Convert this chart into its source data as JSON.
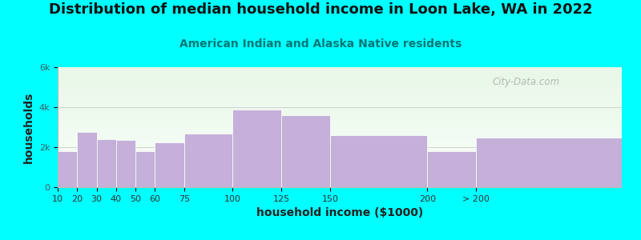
{
  "title": "Distribution of median household income in Loon Lake, WA in 2022",
  "subtitle": "American Indian and Alaska Native residents",
  "xlabel": "household income ($1000)",
  "ylabel": "households",
  "bg_color": "#00FFFF",
  "bar_color": "#C4B0D8",
  "bar_edgecolor": "#ffffff",
  "categories": [
    "10",
    "20",
    "30",
    "40",
    "50",
    "60",
    "75",
    "100",
    "125",
    "150",
    "200",
    "> 200"
  ],
  "values": [
    1800,
    2750,
    2400,
    2350,
    1800,
    2250,
    2700,
    3900,
    3600,
    2600,
    1800,
    2500
  ],
  "bar_lefts": [
    10,
    20,
    30,
    40,
    50,
    60,
    75,
    100,
    125,
    150,
    200,
    225
  ],
  "bar_widths": [
    10,
    10,
    10,
    10,
    10,
    15,
    25,
    25,
    25,
    50,
    25,
    75
  ],
  "xtick_pos": [
    10,
    20,
    30,
    40,
    50,
    60,
    75,
    100,
    125,
    150,
    200,
    225
  ],
  "xtick_labels": [
    "10",
    "20",
    "30",
    "40",
    "50",
    "60",
    "75",
    "100",
    "125",
    "150",
    "200",
    "> 200"
  ],
  "xlim": [
    10,
    300
  ],
  "ylim": [
    0,
    6000
  ],
  "yticks": [
    0,
    2000,
    4000,
    6000
  ],
  "ytick_labels": [
    "0",
    "2k",
    "4k",
    "6k"
  ],
  "watermark": "City-Data.com",
  "title_fontsize": 13,
  "subtitle_fontsize": 10,
  "axis_label_fontsize": 10,
  "tick_fontsize": 8,
  "gradient_top": "#e8f5e8",
  "gradient_bottom": "#f8fff8"
}
